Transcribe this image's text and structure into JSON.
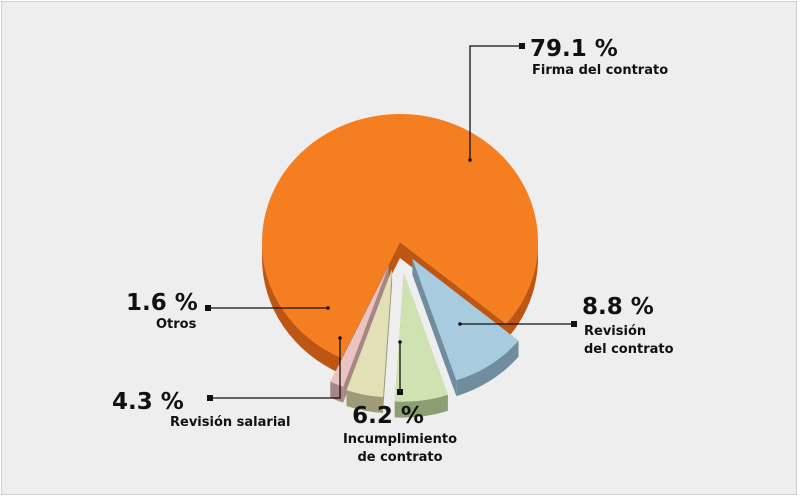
{
  "chart_data": {
    "type": "pie",
    "title": "",
    "slices": [
      {
        "value": 79.1,
        "value_label": "79.1 %",
        "label_lines": [
          "Firma del contrato"
        ],
        "color": "#f47e20",
        "side_color": "#bd5513"
      },
      {
        "value": 8.8,
        "value_label": "8.8 %",
        "label_lines": [
          "Revisión",
          "del contrato"
        ],
        "color": "#a9cbdf",
        "side_color": "#6f8d9e"
      },
      {
        "value": 6.2,
        "value_label": "6.2 %",
        "label_lines": [
          "Incumplimiento",
          "de contrato"
        ],
        "color": "#cfe2b2",
        "side_color": "#8c9f72"
      },
      {
        "value": 4.3,
        "value_label": "4.3 %",
        "label_lines": [
          "Revisión salarial"
        ],
        "color": "#e3dfb7",
        "side_color": "#9f9b78"
      },
      {
        "value": 1.6,
        "value_label": "1.6 %",
        "label_lines": [
          "Otros"
        ],
        "color": "#ebc3c1",
        "side_color": "#a78683"
      }
    ]
  }
}
